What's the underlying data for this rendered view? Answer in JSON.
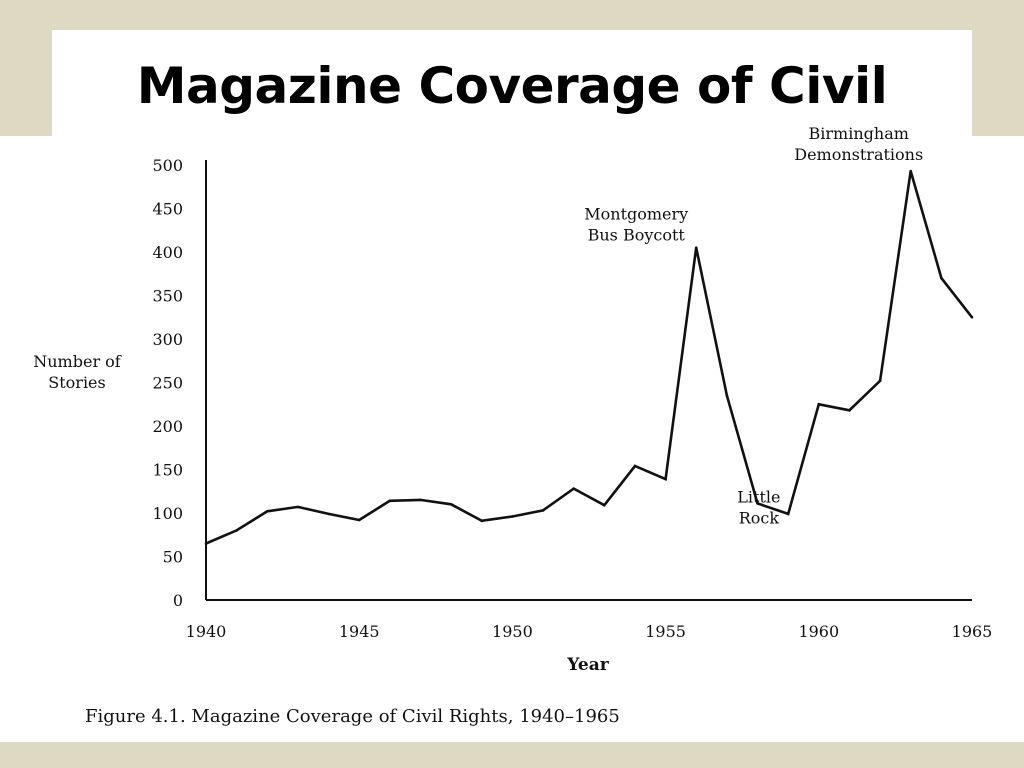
{
  "slide": {
    "title": "Magazine Coverage of Civil Rights",
    "colors": {
      "background": "#ddd9c3",
      "panel": "#ffffff",
      "line": "#111111"
    }
  },
  "chart_data": {
    "type": "line",
    "title": "",
    "caption": "Figure 4.1.  Magazine Coverage of Civil Rights, 1940–1965",
    "xlabel": "Year",
    "ylabel": "Number of Stories",
    "ylabel_lines": [
      "Number of",
      "Stories"
    ],
    "xlim": [
      1940,
      1965
    ],
    "ylim": [
      0,
      500
    ],
    "x_ticks": [
      1940,
      1945,
      1950,
      1955,
      1960,
      1965
    ],
    "y_ticks": [
      0,
      50,
      100,
      150,
      200,
      250,
      300,
      350,
      400,
      450,
      500
    ],
    "grid": false,
    "series": [
      {
        "x": [
          1940,
          1941,
          1942,
          1943,
          1944,
          1945,
          1946,
          1947,
          1948,
          1949,
          1950,
          1951,
          1952,
          1953,
          1954,
          1955,
          1956,
          1957,
          1958,
          1959,
          1960,
          1961,
          1962,
          1963,
          1964,
          1965
        ],
        "values": [
          65,
          80,
          102,
          107,
          99,
          92,
          114,
          115,
          110,
          91,
          96,
          103,
          128,
          109,
          154,
          139,
          405,
          235,
          111,
          99,
          225,
          218,
          252,
          493,
          370,
          325
        ]
      }
    ],
    "annotations": [
      {
        "lines": [
          "Montgomery",
          "Bus Boycott"
        ],
        "x": 1956,
        "y": 405
      },
      {
        "lines": [
          "Little",
          "Rock"
        ],
        "x": 1957,
        "y": 235
      },
      {
        "lines": [
          "Birmingham",
          "Demonstrations"
        ],
        "x": 1963,
        "y": 493
      }
    ]
  }
}
